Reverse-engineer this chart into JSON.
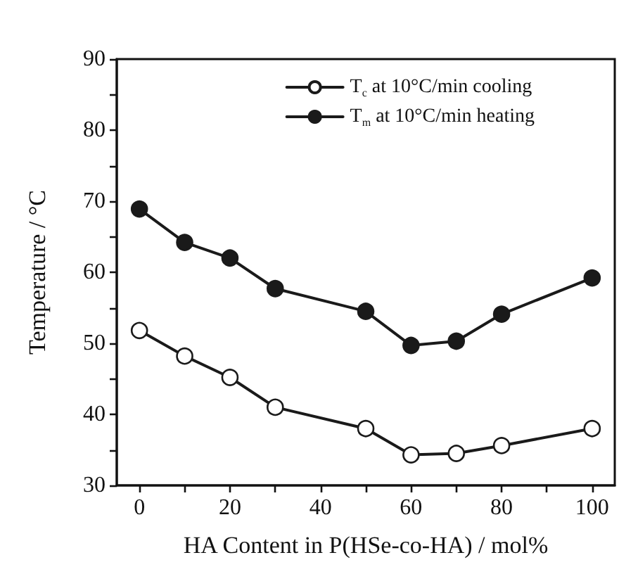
{
  "chart_data": {
    "type": "line",
    "xlabel": "HA Content in P(HSe-co-HA) / mol%",
    "ylabel": "Temperature / °C",
    "x": [
      0,
      10,
      20,
      30,
      50,
      60,
      70,
      80,
      100
    ],
    "series": [
      {
        "name": "T$_{c}$ at 10°C/min cooling",
        "color": "#1a1a1a",
        "values": [
          51.8,
          48.2,
          45.2,
          41.0,
          38.0,
          34.3,
          34.5,
          35.6,
          38.0
        ]
      },
      {
        "name": "T$_{m}$ at 10°C/min heating",
        "color": "#1a1a1a",
        "values": [
          68.9,
          64.2,
          62.0,
          57.7,
          54.5,
          49.7,
          50.3,
          54.1,
          59.2
        ]
      }
    ],
    "xlim": [
      -5,
      105
    ],
    "xticks": [
      0,
      {
        "value": 10,
        "label": null
      },
      20,
      {
        "value": 30,
        "label": null
      },
      40,
      {
        "value": 50,
        "label": null
      },
      60,
      {
        "value": 70,
        "label": null
      },
      80,
      {
        "value": 90,
        "label": null
      },
      100
    ],
    "ylim": [
      30,
      90
    ],
    "yticks": [
      30,
      {
        "value": 35,
        "label": null
      },
      40,
      {
        "value": 45,
        "label": null
      },
      50,
      {
        "value": 55,
        "label": null
      },
      60,
      {
        "value": 65,
        "label": null
      },
      70,
      {
        "value": 75,
        "label": null
      },
      80,
      {
        "value": 85,
        "label": null
      },
      90
    ],
    "grid": false,
    "legend": "top right",
    "marker": "circle",
    "line_style": "solid"
  }
}
